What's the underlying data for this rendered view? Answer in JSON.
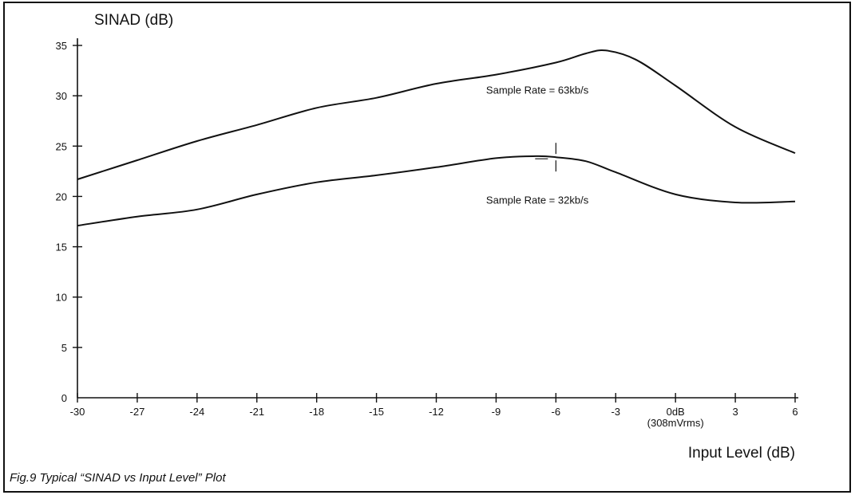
{
  "chart_data": {
    "type": "line",
    "caption": "Fig.9 Typical “SINAD vs Input Level” Plot",
    "ylabel": "SINAD (dB)",
    "xlabel": "Input Level (dB)",
    "xlim": [
      -30,
      6
    ],
    "ylim": [
      0,
      35
    ],
    "grid": false,
    "x_ticks": [
      {
        "value": -30,
        "label": "-30"
      },
      {
        "value": -27,
        "label": "-27"
      },
      {
        "value": -24,
        "label": "-24"
      },
      {
        "value": -21,
        "label": "-21"
      },
      {
        "value": -18,
        "label": "-18"
      },
      {
        "value": -15,
        "label": "-15"
      },
      {
        "value": -12,
        "label": "-12"
      },
      {
        "value": -9,
        "label": "-9"
      },
      {
        "value": -6,
        "label": "-6"
      },
      {
        "value": -3,
        "label": "-3"
      },
      {
        "value": 0,
        "label": "0dB",
        "sublabel": "(308mVrms)"
      },
      {
        "value": 3,
        "label": "3"
      },
      {
        "value": 6,
        "label": "6"
      }
    ],
    "y_ticks": [
      {
        "value": 0,
        "label": "0"
      },
      {
        "value": 5,
        "label": "5"
      },
      {
        "value": 10,
        "label": "10"
      },
      {
        "value": 15,
        "label": "15"
      },
      {
        "value": 20,
        "label": "20"
      },
      {
        "value": 25,
        "label": "25"
      },
      {
        "value": 30,
        "label": "30"
      },
      {
        "value": 35,
        "label": "35"
      }
    ],
    "series": [
      {
        "name": "Sample Rate = 63kb/s",
        "label_at": [
          -9.5,
          30.2
        ],
        "x": [
          -30,
          -27,
          -24,
          -21,
          -18,
          -15,
          -12,
          -9,
          -6,
          -4.5,
          -3.5,
          -2,
          0,
          3,
          6
        ],
        "y": [
          21.7,
          23.6,
          25.5,
          27.1,
          28.8,
          29.8,
          31.2,
          32.1,
          33.3,
          34.2,
          34.5,
          33.6,
          31.0,
          26.9,
          24.3
        ]
      },
      {
        "name": "Sample Rate = 32kb/s",
        "label_at": [
          -9.5,
          19.3
        ],
        "x": [
          -30,
          -27,
          -24,
          -21,
          -18,
          -15,
          -12,
          -9,
          -7,
          -6,
          -4.5,
          -3,
          0,
          3,
          6
        ],
        "y": [
          17.1,
          18.0,
          18.7,
          20.2,
          21.4,
          22.1,
          22.9,
          23.8,
          24.0,
          23.9,
          23.5,
          22.4,
          20.2,
          19.4,
          19.5
        ]
      }
    ]
  }
}
